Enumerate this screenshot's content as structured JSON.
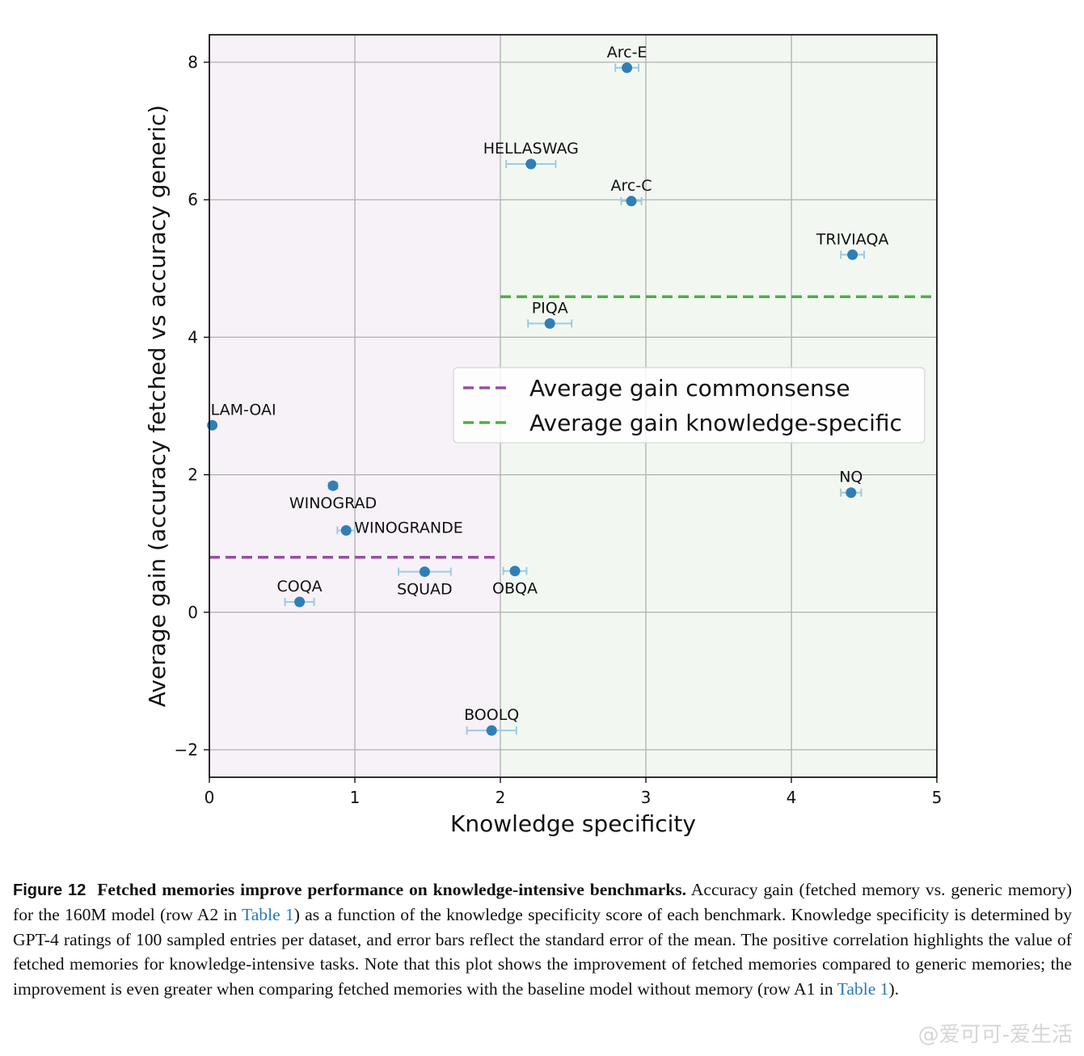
{
  "chart_data": {
    "type": "scatter",
    "xlabel": "Knowledge specificity",
    "ylabel": "Average gain (accuracy fetched vs accuracy generic)",
    "xlim": [
      0,
      5
    ],
    "ylim": [
      -2.4,
      8.4
    ],
    "xticks": [
      0,
      1,
      2,
      3,
      4,
      5
    ],
    "yticks": [
      -2,
      0,
      2,
      4,
      6,
      8
    ],
    "ytick_labels": [
      "−2",
      "0",
      "2",
      "4",
      "6",
      "8"
    ],
    "grid": true,
    "regions": [
      {
        "name": "commonsense",
        "x_range": [
          0,
          2
        ],
        "color": "#f7f1f8"
      },
      {
        "name": "knowledge-specific",
        "x_range": [
          2,
          5
        ],
        "color": "#f2f8f1"
      }
    ],
    "points": [
      {
        "label": "Arc-E",
        "x": 2.87,
        "y": 7.92,
        "xerr": 0.08,
        "label_pos": "above"
      },
      {
        "label": "HELLASWAG",
        "x": 2.21,
        "y": 6.52,
        "xerr": 0.17,
        "label_pos": "above"
      },
      {
        "label": "Arc-C",
        "x": 2.9,
        "y": 5.98,
        "xerr": 0.07,
        "label_pos": "above"
      },
      {
        "label": "TRIVIAQA",
        "x": 4.42,
        "y": 5.2,
        "xerr": 0.08,
        "label_pos": "above"
      },
      {
        "label": "PIQA",
        "x": 2.34,
        "y": 4.2,
        "xerr": 0.15,
        "label_pos": "above"
      },
      {
        "label": "LAM-OAI",
        "x": 0.02,
        "y": 2.72,
        "xerr": 0.0,
        "label_pos": "above-right"
      },
      {
        "label": "WINOGRAD",
        "x": 0.85,
        "y": 1.84,
        "xerr": 0.03,
        "label_pos": "below"
      },
      {
        "label": "NQ",
        "x": 4.41,
        "y": 1.74,
        "xerr": 0.07,
        "label_pos": "above"
      },
      {
        "label": "WINOGRANDE",
        "x": 0.94,
        "y": 1.19,
        "xerr": 0.06,
        "label_pos": "right"
      },
      {
        "label": "OBQA",
        "x": 2.1,
        "y": 0.6,
        "xerr": 0.08,
        "label_pos": "below"
      },
      {
        "label": "SQUAD",
        "x": 1.48,
        "y": 0.59,
        "xerr": 0.18,
        "label_pos": "below"
      },
      {
        "label": "COQA",
        "x": 0.62,
        "y": 0.15,
        "xerr": 0.1,
        "label_pos": "above"
      },
      {
        "label": "BOOLQ",
        "x": 1.94,
        "y": -1.72,
        "xerr": 0.17,
        "label_pos": "above"
      }
    ],
    "reference_lines": [
      {
        "name": "Average gain commonsense",
        "y": 0.8,
        "x_range": [
          0,
          2
        ],
        "color": "#984ea3"
      },
      {
        "name": "Average gain knowledge-specific",
        "y": 4.59,
        "x_range": [
          2,
          5
        ],
        "color": "#4daf4a"
      }
    ],
    "legend": {
      "placement": "center-right",
      "entries": [
        "Average gain commonsense",
        "Average gain knowledge-specific"
      ]
    },
    "marker_color": "#2f7fb6",
    "errorbar_color": "#9ecae1"
  },
  "caption": {
    "figure_label": "Figure 12",
    "title": "Fetched memories improve performance on knowledge-intensive benchmarks.",
    "text_1": "Accuracy gain (fetched memory vs. generic memory) for the 160M model (row A2 in",
    "ref_1": "Table 1",
    "text_2": ") as a function of the knowledge specificity score of each benchmark. Knowledge specificity is determined by GPT-4 ratings of 100 sampled entries per dataset, and error bars reflect the standard error of the mean. The positive correlation highlights the value of fetched memories for knowledge-intensive tasks. Note that this plot shows the improvement of fetched memories compared to generic memories; the improvement is even greater when comparing fetched memories with the baseline model without memory (row A1 in",
    "ref_2": "Table 1",
    "text_3": ")."
  },
  "watermark": "@爱可可-爱生活"
}
